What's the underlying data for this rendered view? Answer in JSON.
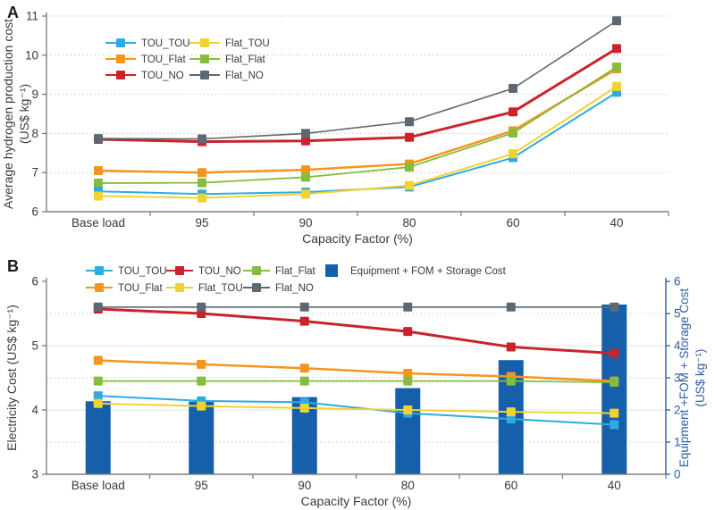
{
  "chart_data": [
    {
      "panel_label": "A",
      "type": "line",
      "categories": [
        "Base load",
        "95",
        "90",
        "80",
        "60",
        "40"
      ],
      "xlabel": "Capacity Factor (%)",
      "ylabel_left_lines": [
        "Average hydrogen production cost",
        "(US$ kg⁻¹)"
      ],
      "ylim_left": [
        6,
        11
      ],
      "yticks_left": [
        6,
        7,
        8,
        9,
        10,
        11
      ],
      "grid_dotted": [
        7,
        8,
        9,
        10,
        11
      ],
      "grid_solid": [],
      "legend_groups": [
        [
          "TOU_TOU",
          "TOU_Flat",
          "TOU_NO"
        ],
        [
          "Flat_TOU",
          "Flat_Flat",
          "Flat_NO"
        ]
      ],
      "series": [
        {
          "name": "TOU_Flat",
          "color": "#F7941E",
          "width": 2.5,
          "values": [
            7.05,
            7.0,
            7.07,
            7.22,
            8.07,
            9.65
          ]
        },
        {
          "name": "Flat_Flat",
          "color": "#85BD3E",
          "width": 1.8,
          "values": [
            6.73,
            6.74,
            6.88,
            7.14,
            8.01,
            9.7
          ]
        },
        {
          "name": "TOU_NO",
          "color": "#C8242B",
          "width": 3,
          "values": [
            7.85,
            7.79,
            7.81,
            7.9,
            8.55,
            10.17
          ]
        },
        {
          "name": "Flat_NO",
          "color": "#5D6872",
          "width": 1.6,
          "values": [
            7.87,
            7.86,
            8.0,
            8.3,
            9.15,
            10.88
          ]
        },
        {
          "name": "TOU_TOU",
          "color": "#2BACE2",
          "width": 2,
          "values": [
            6.52,
            6.45,
            6.5,
            6.63,
            7.38,
            9.05
          ]
        },
        {
          "name": "Flat_TOU",
          "color": "#F2D230",
          "width": 2,
          "values": [
            6.4,
            6.35,
            6.45,
            6.67,
            7.48,
            9.2
          ]
        }
      ]
    },
    {
      "panel_label": "B",
      "type": "line+bar",
      "categories": [
        "Base load",
        "95",
        "90",
        "80",
        "60",
        "40"
      ],
      "xlabel": "Capacity Factor (%)",
      "ylabel_left_lines": [
        "Electricity Cost (US$ kg⁻¹)"
      ],
      "ylabel_right_lines": [
        "Equipment +FOM + Storage Cost",
        "(US$ kg⁻¹)"
      ],
      "ylim_left": [
        3,
        6
      ],
      "yticks_left": [
        3,
        4,
        5,
        6
      ],
      "ylim_right": [
        0,
        6
      ],
      "yticks_right": [
        0,
        1,
        2,
        3,
        4,
        5,
        6
      ],
      "grid_dotted": [
        3.5,
        4.5,
        5.5
      ],
      "grid_solid": [
        4,
        5
      ],
      "bars": {
        "name": "Equipment + FOM + Storage Cost",
        "color": "#1660AB",
        "axis": "right",
        "values": [
          2.27,
          2.26,
          2.4,
          2.68,
          3.55,
          5.28
        ]
      },
      "legend_groups": [
        [
          "TOU_TOU",
          "TOU_NO",
          "Flat_Flat",
          "Equipment + FOM + Storage Cost"
        ],
        [
          "TOU_Flat",
          "Flat_TOU",
          "Flat_NO"
        ]
      ],
      "series": [
        {
          "name": "TOU_Flat",
          "color": "#F7941E",
          "width": 2.5,
          "values": [
            4.77,
            4.71,
            4.65,
            4.57,
            4.52,
            4.45
          ]
        },
        {
          "name": "Flat_Flat",
          "color": "#85BD3E",
          "width": 1.8,
          "values": [
            4.45,
            4.45,
            4.45,
            4.45,
            4.45,
            4.43
          ]
        },
        {
          "name": "TOU_NO",
          "color": "#C8242B",
          "width": 3,
          "values": [
            5.57,
            5.5,
            5.38,
            5.22,
            4.98,
            4.88
          ]
        },
        {
          "name": "Flat_NO",
          "color": "#5D6872",
          "width": 1.6,
          "values": [
            5.6,
            5.6,
            5.6,
            5.6,
            5.6,
            5.6
          ]
        },
        {
          "name": "TOU_TOU",
          "color": "#2BACE2",
          "width": 2,
          "values": [
            4.22,
            4.14,
            4.12,
            3.95,
            3.86,
            3.77
          ]
        },
        {
          "name": "Flat_TOU",
          "color": "#F2D230",
          "width": 2,
          "values": [
            4.1,
            4.06,
            4.03,
            4.0,
            3.97,
            3.95
          ]
        }
      ]
    }
  ],
  "colors": {
    "axis": "#7f7f7f",
    "text": "#3a3a3a",
    "grid_dotted": "#c4c4c4",
    "grid_solid": "#e3e3e3",
    "right_axis_blue": "#2E5FA5",
    "bar_blue": "#1660AB"
  }
}
